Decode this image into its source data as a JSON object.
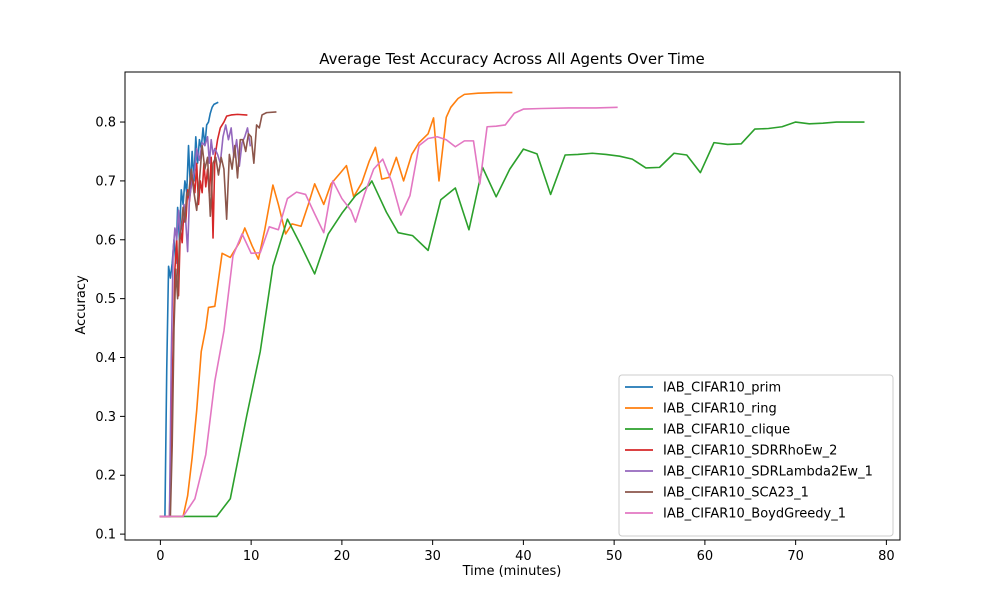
{
  "chart_data": {
    "type": "line",
    "title": "Average Test Accuracy Across All Agents Over Time",
    "xlabel": "Time (minutes)",
    "ylabel": "Accuracy",
    "xlim": [
      -3.9,
      81.5
    ],
    "ylim": [
      0.09,
      0.885
    ],
    "xticks": [
      0,
      10,
      20,
      30,
      40,
      50,
      60,
      70,
      80
    ],
    "yticks": [
      0.1,
      0.2,
      0.3,
      0.4,
      0.5,
      0.6,
      0.7,
      0.8
    ],
    "legend_position": "lower-right",
    "series": [
      {
        "name": "IAB_CIFAR10_prim",
        "color": "#1f77b4",
        "points": [
          [
            0,
            0.13
          ],
          [
            0.5,
            0.13
          ],
          [
            0.7,
            0.38
          ],
          [
            0.9,
            0.555
          ],
          [
            1.1,
            0.535
          ],
          [
            1.3,
            0.56
          ],
          [
            1.5,
            0.6
          ],
          [
            1.7,
            0.56
          ],
          [
            1.9,
            0.655
          ],
          [
            2.1,
            0.6
          ],
          [
            2.3,
            0.685
          ],
          [
            2.5,
            0.66
          ],
          [
            2.7,
            0.7
          ],
          [
            2.9,
            0.68
          ],
          [
            3.1,
            0.76
          ],
          [
            3.3,
            0.69
          ],
          [
            3.5,
            0.75
          ],
          [
            3.7,
            0.7
          ],
          [
            3.9,
            0.775
          ],
          [
            4.1,
            0.73
          ],
          [
            4.3,
            0.77
          ],
          [
            4.5,
            0.755
          ],
          [
            4.7,
            0.79
          ],
          [
            4.9,
            0.76
          ],
          [
            5.1,
            0.795
          ],
          [
            5.3,
            0.8
          ],
          [
            5.5,
            0.815
          ],
          [
            5.7,
            0.825
          ],
          [
            5.9,
            0.83
          ],
          [
            6.3,
            0.833
          ]
        ]
      },
      {
        "name": "IAB_CIFAR10_ring",
        "color": "#ff7f0e",
        "points": [
          [
            0,
            0.13
          ],
          [
            2.5,
            0.13
          ],
          [
            3.0,
            0.165
          ],
          [
            3.5,
            0.23
          ],
          [
            4.0,
            0.31
          ],
          [
            4.5,
            0.41
          ],
          [
            5.0,
            0.45
          ],
          [
            5.3,
            0.485
          ],
          [
            6.0,
            0.487
          ],
          [
            6.8,
            0.577
          ],
          [
            7.7,
            0.57
          ],
          [
            8.7,
            0.595
          ],
          [
            9.3,
            0.62
          ],
          [
            10.1,
            0.59
          ],
          [
            10.8,
            0.567
          ],
          [
            11.5,
            0.617
          ],
          [
            12.4,
            0.693
          ],
          [
            13.0,
            0.66
          ],
          [
            13.8,
            0.61
          ],
          [
            14.5,
            0.627
          ],
          [
            15.5,
            0.623
          ],
          [
            16.3,
            0.66
          ],
          [
            17.0,
            0.695
          ],
          [
            18.0,
            0.66
          ],
          [
            18.8,
            0.695
          ],
          [
            19.8,
            0.713
          ],
          [
            20.5,
            0.726
          ],
          [
            21.3,
            0.673
          ],
          [
            22.2,
            0.697
          ],
          [
            23.0,
            0.733
          ],
          [
            23.7,
            0.757
          ],
          [
            24.4,
            0.703
          ],
          [
            25.2,
            0.706
          ],
          [
            26.0,
            0.74
          ],
          [
            26.8,
            0.7
          ],
          [
            27.7,
            0.745
          ],
          [
            28.5,
            0.765
          ],
          [
            29.5,
            0.78
          ],
          [
            30.1,
            0.807
          ],
          [
            30.7,
            0.7
          ],
          [
            31.5,
            0.808
          ],
          [
            32.0,
            0.825
          ],
          [
            32.8,
            0.84
          ],
          [
            33.5,
            0.847
          ],
          [
            35.0,
            0.849
          ],
          [
            37.0,
            0.85
          ],
          [
            38.7,
            0.85
          ]
        ]
      },
      {
        "name": "IAB_CIFAR10_clique",
        "color": "#2ca02c",
        "points": [
          [
            0,
            0.13
          ],
          [
            6.2,
            0.13
          ],
          [
            7.7,
            0.16
          ],
          [
            9.5,
            0.3
          ],
          [
            11.0,
            0.41
          ],
          [
            12.4,
            0.555
          ],
          [
            14.0,
            0.635
          ],
          [
            15.5,
            0.59
          ],
          [
            17.0,
            0.542
          ],
          [
            18.5,
            0.61
          ],
          [
            20.0,
            0.645
          ],
          [
            21.5,
            0.675
          ],
          [
            23.0,
            0.693
          ],
          [
            23.3,
            0.7
          ],
          [
            24.9,
            0.647
          ],
          [
            26.2,
            0.612
          ],
          [
            27.8,
            0.607
          ],
          [
            29.5,
            0.582
          ],
          [
            30.9,
            0.668
          ],
          [
            32.5,
            0.688
          ],
          [
            34.0,
            0.617
          ],
          [
            35.5,
            0.723
          ],
          [
            37.0,
            0.673
          ],
          [
            38.5,
            0.72
          ],
          [
            40.0,
            0.754
          ],
          [
            41.5,
            0.746
          ],
          [
            43.0,
            0.677
          ],
          [
            44.6,
            0.744
          ],
          [
            46.0,
            0.745
          ],
          [
            47.6,
            0.747
          ],
          [
            49.1,
            0.745
          ],
          [
            50.6,
            0.742
          ],
          [
            52.0,
            0.737
          ],
          [
            53.5,
            0.722
          ],
          [
            55.0,
            0.723
          ],
          [
            56.6,
            0.747
          ],
          [
            58.0,
            0.744
          ],
          [
            59.5,
            0.714
          ],
          [
            61.0,
            0.765
          ],
          [
            62.5,
            0.762
          ],
          [
            64.0,
            0.763
          ],
          [
            65.5,
            0.788
          ],
          [
            67.0,
            0.789
          ],
          [
            68.5,
            0.792
          ],
          [
            70.0,
            0.8
          ],
          [
            71.5,
            0.797
          ],
          [
            73.0,
            0.798
          ],
          [
            74.5,
            0.8
          ],
          [
            76.0,
            0.8
          ],
          [
            77.5,
            0.8
          ]
        ]
      },
      {
        "name": "IAB_CIFAR10_SDRRhoEw_2",
        "color": "#d62728",
        "points": [
          [
            0,
            0.13
          ],
          [
            1.0,
            0.13
          ],
          [
            1.3,
            0.35
          ],
          [
            1.6,
            0.55
          ],
          [
            1.8,
            0.6
          ],
          [
            2.0,
            0.505
          ],
          [
            2.2,
            0.62
          ],
          [
            2.4,
            0.595
          ],
          [
            2.6,
            0.655
          ],
          [
            2.8,
            0.63
          ],
          [
            3.0,
            0.685
          ],
          [
            3.2,
            0.665
          ],
          [
            3.5,
            0.71
          ],
          [
            3.8,
            0.68
          ],
          [
            4.0,
            0.73
          ],
          [
            4.2,
            0.66
          ],
          [
            4.4,
            0.7
          ],
          [
            4.6,
            0.68
          ],
          [
            4.8,
            0.73
          ],
          [
            5.0,
            0.69
          ],
          [
            5.2,
            0.72
          ],
          [
            5.4,
            0.675
          ],
          [
            5.6,
            0.74
          ],
          [
            5.8,
            0.603
          ],
          [
            6.0,
            0.74
          ],
          [
            6.3,
            0.77
          ],
          [
            6.6,
            0.79
          ],
          [
            7.0,
            0.8
          ],
          [
            7.3,
            0.81
          ],
          [
            7.8,
            0.812
          ],
          [
            8.5,
            0.813
          ],
          [
            9.5,
            0.812
          ]
        ]
      },
      {
        "name": "IAB_CIFAR10_SDRLambda2Ew_1",
        "color": "#9467bd",
        "points": [
          [
            0,
            0.13
          ],
          [
            1.0,
            0.13
          ],
          [
            1.2,
            0.4
          ],
          [
            1.4,
            0.58
          ],
          [
            1.6,
            0.62
          ],
          [
            1.8,
            0.6
          ],
          [
            2.0,
            0.65
          ],
          [
            2.2,
            0.61
          ],
          [
            2.4,
            0.63
          ],
          [
            2.6,
            0.66
          ],
          [
            2.8,
            0.63
          ],
          [
            3.0,
            0.58
          ],
          [
            3.2,
            0.67
          ],
          [
            3.5,
            0.7
          ],
          [
            3.8,
            0.72
          ],
          [
            4.0,
            0.755
          ],
          [
            4.3,
            0.735
          ],
          [
            4.6,
            0.765
          ],
          [
            4.9,
            0.76
          ],
          [
            5.2,
            0.775
          ],
          [
            5.4,
            0.73
          ],
          [
            5.6,
            0.77
          ],
          [
            5.8,
            0.745
          ],
          [
            6.0,
            0.755
          ],
          [
            6.3,
            0.745
          ],
          [
            6.6,
            0.73
          ],
          [
            6.9,
            0.775
          ],
          [
            7.2,
            0.795
          ],
          [
            7.5,
            0.77
          ],
          [
            7.8,
            0.79
          ],
          [
            8.1,
            0.74
          ],
          [
            8.4,
            0.77
          ],
          [
            8.7,
            0.725
          ],
          [
            9.0,
            0.765
          ],
          [
            9.3,
            0.775
          ],
          [
            9.6,
            0.79
          ],
          [
            9.9,
            0.76
          ]
        ]
      },
      {
        "name": "IAB_CIFAR10_SCA23_1",
        "color": "#8c564b",
        "points": [
          [
            0,
            0.13
          ],
          [
            1.1,
            0.13
          ],
          [
            1.3,
            0.25
          ],
          [
            1.5,
            0.45
          ],
          [
            1.7,
            0.55
          ],
          [
            1.9,
            0.5
          ],
          [
            2.1,
            0.6
          ],
          [
            2.3,
            0.62
          ],
          [
            2.5,
            0.655
          ],
          [
            2.7,
            0.63
          ],
          [
            2.9,
            0.68
          ],
          [
            3.1,
            0.675
          ],
          [
            3.4,
            0.72
          ],
          [
            3.7,
            0.68
          ],
          [
            4.0,
            0.65
          ],
          [
            4.3,
            0.7
          ],
          [
            4.6,
            0.76
          ],
          [
            4.9,
            0.72
          ],
          [
            5.2,
            0.74
          ],
          [
            5.5,
            0.64
          ],
          [
            5.8,
            0.73
          ],
          [
            6.1,
            0.74
          ],
          [
            6.4,
            0.71
          ],
          [
            6.7,
            0.74
          ],
          [
            7.0,
            0.72
          ],
          [
            7.3,
            0.635
          ],
          [
            7.6,
            0.745
          ],
          [
            7.9,
            0.72
          ],
          [
            8.2,
            0.76
          ],
          [
            8.5,
            0.705
          ],
          [
            8.8,
            0.77
          ],
          [
            9.1,
            0.77
          ],
          [
            9.4,
            0.75
          ],
          [
            9.7,
            0.78
          ],
          [
            10.0,
            0.775
          ],
          [
            10.3,
            0.73
          ],
          [
            10.6,
            0.795
          ],
          [
            10.9,
            0.79
          ],
          [
            11.2,
            0.812
          ],
          [
            11.7,
            0.816
          ],
          [
            12.7,
            0.817
          ]
        ]
      },
      {
        "name": "IAB_CIFAR10_BoydGreedy_1",
        "color": "#e377c2",
        "points": [
          [
            0,
            0.13
          ],
          [
            2.5,
            0.13
          ],
          [
            3.8,
            0.16
          ],
          [
            5.0,
            0.235
          ],
          [
            6.0,
            0.36
          ],
          [
            7.0,
            0.445
          ],
          [
            8.0,
            0.573
          ],
          [
            9.0,
            0.61
          ],
          [
            10.0,
            0.577
          ],
          [
            11.0,
            0.578
          ],
          [
            12.0,
            0.622
          ],
          [
            13.0,
            0.617
          ],
          [
            14.0,
            0.67
          ],
          [
            15.0,
            0.681
          ],
          [
            16.0,
            0.677
          ],
          [
            17.0,
            0.644
          ],
          [
            18.0,
            0.612
          ],
          [
            19.0,
            0.7
          ],
          [
            20.0,
            0.67
          ],
          [
            21.0,
            0.65
          ],
          [
            21.5,
            0.63
          ],
          [
            22.5,
            0.678
          ],
          [
            23.5,
            0.72
          ],
          [
            24.5,
            0.737
          ],
          [
            25.5,
            0.698
          ],
          [
            26.5,
            0.642
          ],
          [
            27.5,
            0.675
          ],
          [
            28.5,
            0.76
          ],
          [
            29.5,
            0.772
          ],
          [
            30.5,
            0.775
          ],
          [
            31.5,
            0.77
          ],
          [
            32.5,
            0.758
          ],
          [
            33.5,
            0.768
          ],
          [
            34.5,
            0.768
          ],
          [
            35.2,
            0.695
          ],
          [
            36.0,
            0.792
          ],
          [
            37.0,
            0.793
          ],
          [
            38.0,
            0.795
          ],
          [
            39.0,
            0.815
          ],
          [
            40.0,
            0.822
          ],
          [
            42.0,
            0.823
          ],
          [
            45.0,
            0.824
          ],
          [
            48.0,
            0.824
          ],
          [
            50.3,
            0.825
          ]
        ]
      }
    ]
  }
}
